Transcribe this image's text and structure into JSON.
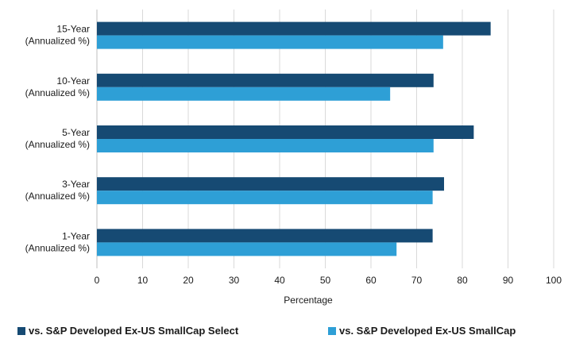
{
  "chart_data": {
    "type": "bar",
    "orientation": "horizontal",
    "categories": [
      [
        "15-Year",
        "(Annualized %)"
      ],
      [
        "10-Year",
        "(Annualized %)"
      ],
      [
        "5-Year",
        "(Annualized %)"
      ],
      [
        "3-Year",
        "(Annualized %)"
      ],
      [
        "1-Year",
        "(Annualized %)"
      ]
    ],
    "series": [
      {
        "name": "vs. S&P Developed Ex-US SmallCap Select",
        "color": "#164a73",
        "values": [
          86.2,
          73.7,
          82.5,
          76.0,
          73.5
        ]
      },
      {
        "name": "vs. S&P Developed Ex-US SmallCap",
        "color": "#2e9fd6",
        "values": [
          75.8,
          64.2,
          73.7,
          73.5,
          65.6
        ]
      }
    ],
    "xlabel": "Percentage",
    "xlim": [
      0,
      100
    ],
    "xticks": [
      0,
      10,
      20,
      30,
      40,
      50,
      60,
      70,
      80,
      90,
      100
    ],
    "grid": "vertical",
    "legend_position": "bottom"
  }
}
